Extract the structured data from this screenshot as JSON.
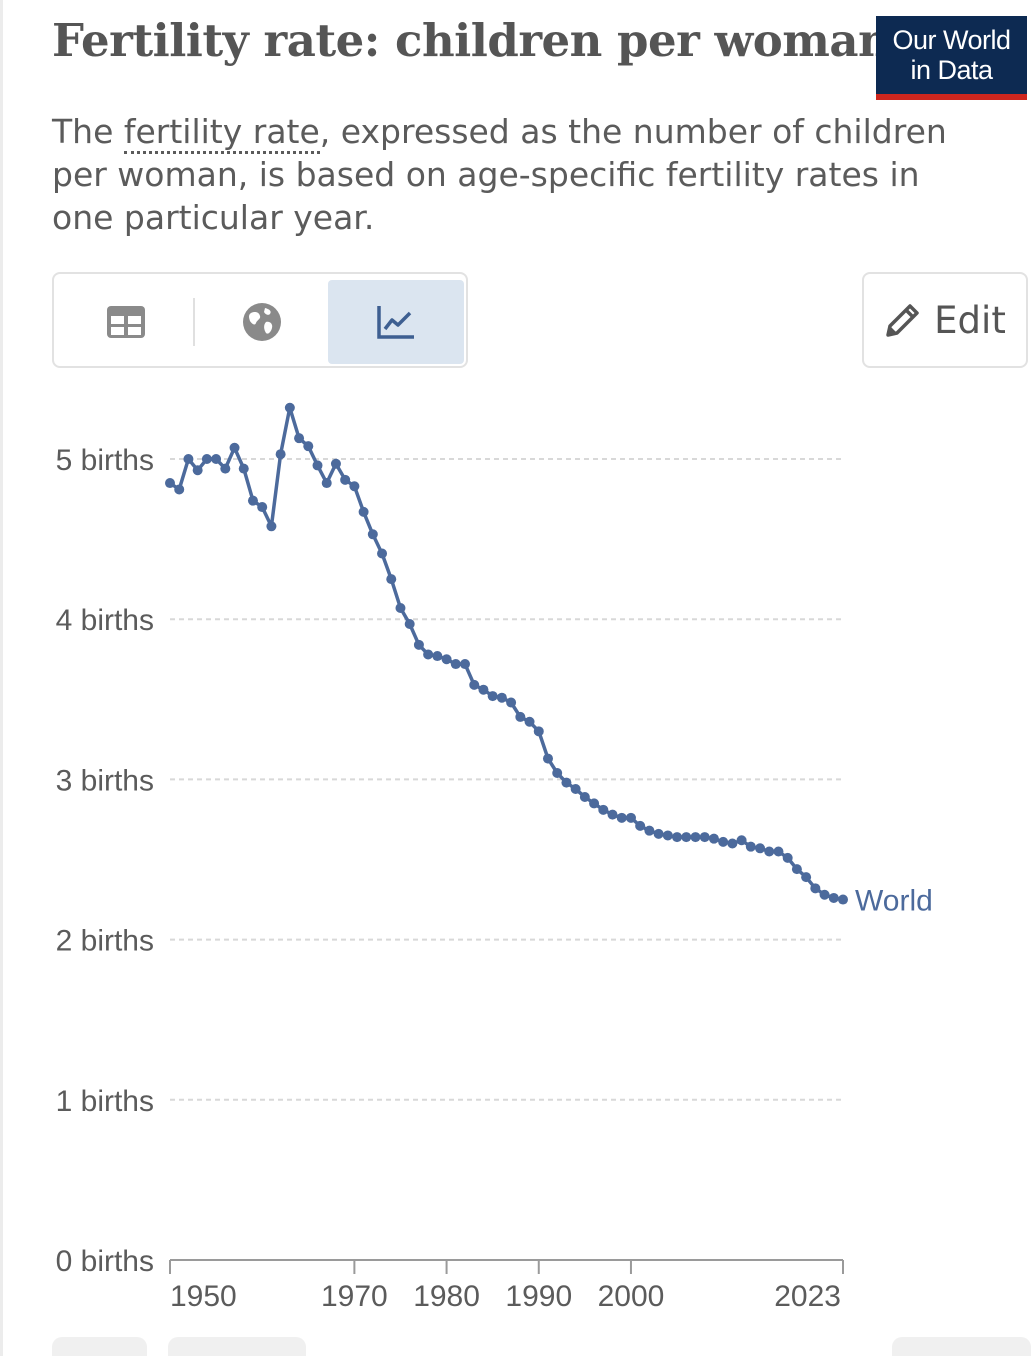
{
  "header": {
    "title": "Fertility rate: children per woman",
    "logo_line1": "Our World",
    "logo_line2": "in Data",
    "subtitle_before": "The ",
    "subtitle_term": "fertility rate",
    "subtitle_after": ", expressed as the number of children per woman, is based on age-specific fertility rates in one particular year."
  },
  "toolbar": {
    "tabs": [
      "table",
      "map",
      "chart"
    ],
    "active_tab": "chart",
    "edit_label": "Edit"
  },
  "colors": {
    "series": "#4c6a9c",
    "grid": "#d8d8d8",
    "axis": "#9a9a9a",
    "tab_active": "#dbe5f0",
    "logo_bg": "#0d2a52",
    "logo_accent": "#ce261e"
  },
  "chart_data": {
    "type": "line",
    "title": "Fertility rate: children per woman",
    "xlabel": "",
    "ylabel": "",
    "xlim": [
      1950,
      2023
    ],
    "ylim": [
      0,
      5
    ],
    "grid": true,
    "x_ticks": [
      1950,
      1970,
      1980,
      1990,
      2000,
      2023
    ],
    "y_ticks": [
      0,
      1,
      2,
      3,
      4,
      5
    ],
    "y_tick_suffix": " births",
    "series": [
      {
        "name": "World",
        "x": [
          1950,
          1951,
          1952,
          1953,
          1954,
          1955,
          1956,
          1957,
          1958,
          1959,
          1960,
          1961,
          1962,
          1963,
          1964,
          1965,
          1966,
          1967,
          1968,
          1969,
          1970,
          1971,
          1972,
          1973,
          1974,
          1975,
          1976,
          1977,
          1978,
          1979,
          1980,
          1981,
          1982,
          1983,
          1984,
          1985,
          1986,
          1987,
          1988,
          1989,
          1990,
          1991,
          1992,
          1993,
          1994,
          1995,
          1996,
          1997,
          1998,
          1999,
          2000,
          2001,
          2002,
          2003,
          2004,
          2005,
          2006,
          2007,
          2008,
          2009,
          2010,
          2011,
          2012,
          2013,
          2014,
          2015,
          2016,
          2017,
          2018,
          2019,
          2020,
          2021,
          2022,
          2023
        ],
        "values": [
          4.85,
          4.81,
          5.0,
          4.93,
          5.0,
          5.0,
          4.94,
          5.07,
          4.94,
          4.74,
          4.7,
          4.58,
          5.03,
          5.32,
          5.13,
          5.08,
          4.96,
          4.85,
          4.97,
          4.87,
          4.83,
          4.67,
          4.53,
          4.41,
          4.25,
          4.07,
          3.97,
          3.84,
          3.78,
          3.77,
          3.75,
          3.72,
          3.72,
          3.59,
          3.56,
          3.52,
          3.51,
          3.48,
          3.39,
          3.36,
          3.3,
          3.13,
          3.04,
          2.98,
          2.94,
          2.89,
          2.85,
          2.81,
          2.78,
          2.76,
          2.76,
          2.71,
          2.68,
          2.66,
          2.65,
          2.64,
          2.64,
          2.64,
          2.64,
          2.63,
          2.61,
          2.6,
          2.62,
          2.58,
          2.57,
          2.55,
          2.55,
          2.51,
          2.44,
          2.39,
          2.32,
          2.28,
          2.26,
          2.25
        ]
      }
    ]
  }
}
